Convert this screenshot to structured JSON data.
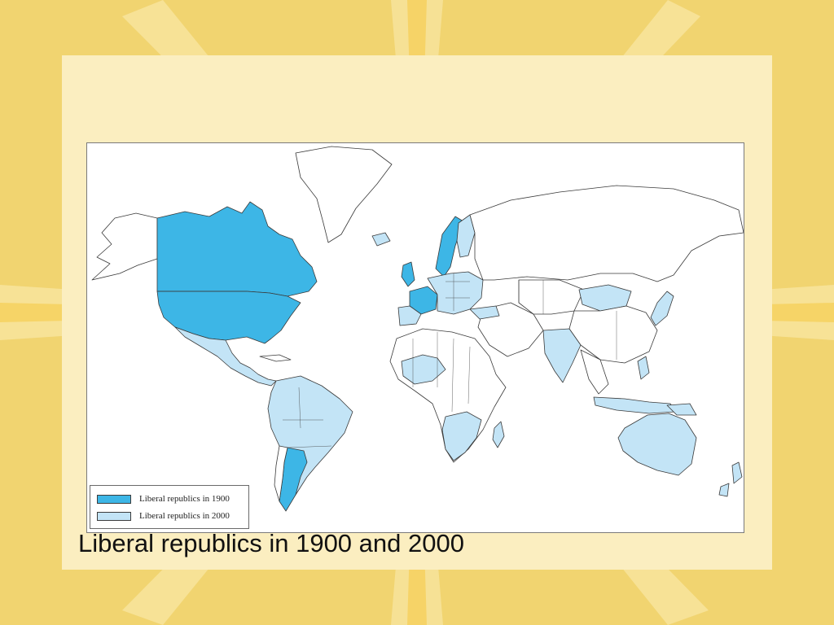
{
  "slide": {
    "caption": "Liberal republics in 1900 and 2000"
  },
  "legend": {
    "items": [
      {
        "label": "Liberal republics in 1900",
        "color": "#3db6e6"
      },
      {
        "label": "Liberal republics in 2000",
        "color": "#c3e4f6"
      }
    ]
  },
  "colors": {
    "background": "#f1d470",
    "panel": "#fbeec0",
    "ocean": "#ffffff",
    "land_other": "#ffffff",
    "border": "#3a3a3a"
  }
}
